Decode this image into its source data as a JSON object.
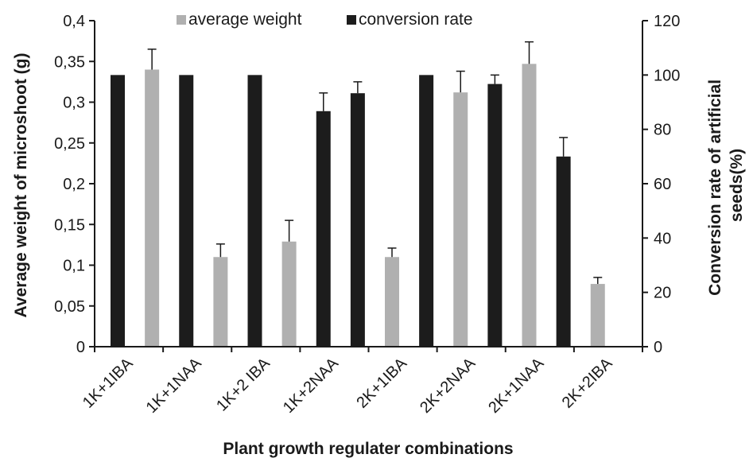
{
  "chart_data": {
    "type": "bar",
    "xlabel": "Plant growth regulater combinations",
    "ylabel": "Average weight of microshoot (g)",
    "y2label_lines": [
      "Conversion rate of artificial",
      "seeds(%)"
    ],
    "categories": [
      "1K+1IBA",
      "1K+1NAA",
      "1K+2 IBA",
      "1K+2NAA",
      "2K+1IBA",
      "2K+2NAA",
      "2K+1NAA",
      "2K+2IBA"
    ],
    "ylim": [
      0,
      0.4
    ],
    "y2lim": [
      0,
      120
    ],
    "y_ticks": [
      "0",
      "0,05",
      "0,1",
      "0,15",
      "0,2",
      "0,25",
      "0,3",
      "0,35",
      "0,4"
    ],
    "y2_ticks": [
      "0",
      "20",
      "40",
      "60",
      "80",
      "100",
      "120"
    ],
    "legend_position": "top",
    "grid": false,
    "series": [
      {
        "name": "average weight",
        "axis": "left",
        "color": "#b0b0b0",
        "values": [
          0.34,
          0.11,
          0.129,
          0.11,
          0.312,
          0.347,
          0.077,
          null
        ],
        "errors": [
          0.025,
          0.016,
          0.026,
          0.011,
          0.026,
          0.027,
          0.008,
          null
        ]
      },
      {
        "name": "conversion rate",
        "axis": "right",
        "color": "#1c1c1c",
        "values": [
          100,
          100,
          100,
          86.7,
          93.3,
          100,
          96.7,
          70
        ],
        "errors": [
          0,
          0,
          0,
          6.7,
          4.2,
          0,
          3.3,
          7
        ]
      }
    ]
  }
}
